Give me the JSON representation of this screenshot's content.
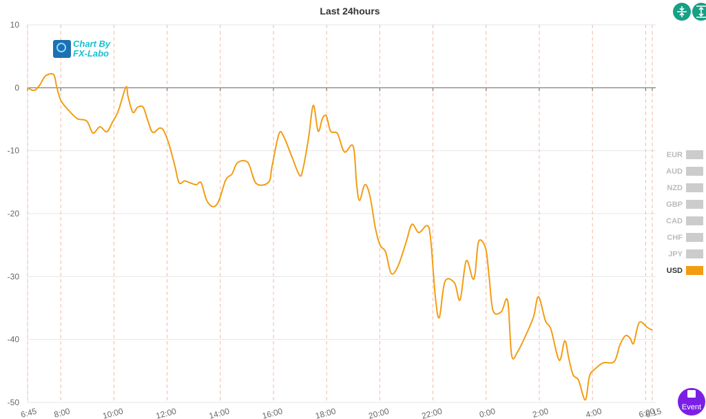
{
  "chart_data": {
    "type": "line",
    "title": "Last 24hours",
    "x": [
      6.75,
      6.93,
      7.06,
      7.22,
      7.43,
      7.73,
      7.84,
      8.0,
      8.3,
      8.62,
      8.98,
      9.21,
      9.47,
      9.73,
      9.94,
      10.17,
      10.45,
      10.53,
      10.71,
      10.89,
      11.1,
      11.28,
      11.46,
      11.72,
      11.88,
      12.08,
      12.29,
      12.45,
      12.66,
      12.86,
      13.1,
      13.28,
      13.49,
      13.74,
      13.95,
      14.21,
      14.44,
      14.65,
      15.04,
      15.35,
      15.82,
      15.95,
      16.21,
      16.39,
      16.67,
      16.98,
      17.11,
      17.32,
      17.5,
      17.68,
      17.84,
      17.99,
      18.15,
      18.41,
      18.67,
      19.0,
      19.13,
      19.24,
      19.44,
      19.63,
      19.83,
      20.01,
      20.22,
      20.43,
      20.69,
      21.0,
      21.21,
      21.47,
      21.78,
      21.91,
      22.09,
      22.24,
      22.45,
      22.81,
      23.02,
      23.25,
      23.49,
      23.59,
      23.72,
      23.98,
      24.11,
      24.26,
      24.57,
      24.81,
      24.96,
      25.19,
      25.56,
      25.79,
      25.97,
      26.23,
      26.44,
      26.75,
      26.96,
      27.11,
      27.27,
      27.48,
      27.73,
      27.89,
      28.12,
      28.41,
      28.82,
      29.03,
      29.24,
      29.42,
      29.55,
      29.76,
      30.07,
      30.25
    ],
    "series": [
      {
        "name": "USD",
        "color": "#f39c12",
        "values": [
          0,
          -0.4,
          -0.3,
          0.5,
          1.9,
          2.1,
          0.3,
          -2.0,
          -3.6,
          -4.9,
          -5.3,
          -7.2,
          -6.2,
          -7.0,
          -5.5,
          -3.6,
          0.1,
          -1.4,
          -3.9,
          -3.1,
          -3.1,
          -5.3,
          -7.1,
          -6.4,
          -6.9,
          -9.1,
          -12.4,
          -15.1,
          -14.8,
          -15.1,
          -15.4,
          -15.1,
          -17.9,
          -18.9,
          -17.9,
          -14.6,
          -13.7,
          -11.9,
          -11.9,
          -15.2,
          -15.0,
          -12.4,
          -7.3,
          -7.8,
          -10.7,
          -13.9,
          -12.9,
          -8.0,
          -2.8,
          -6.9,
          -4.9,
          -4.5,
          -6.9,
          -7.3,
          -10.2,
          -9.3,
          -15.4,
          -17.9,
          -15.4,
          -17.2,
          -22.2,
          -25.0,
          -26.1,
          -29.5,
          -28.3,
          -24.4,
          -21.7,
          -23.0,
          -21.9,
          -23.9,
          -33.2,
          -36.5,
          -30.8,
          -31.0,
          -33.7,
          -27.5,
          -30.3,
          -29.4,
          -24.4,
          -25.5,
          -29.9,
          -35.4,
          -35.6,
          -33.8,
          -42.5,
          -41.9,
          -38.7,
          -36.3,
          -33.2,
          -37.0,
          -38.4,
          -43.3,
          -40.2,
          -43.0,
          -45.6,
          -46.5,
          -49.6,
          -45.8,
          -44.6,
          -43.7,
          -43.5,
          -40.9,
          -39.4,
          -39.8,
          -40.6,
          -37.3,
          -38.1,
          -38.5
        ]
      }
    ],
    "inactive_series": [
      {
        "name": "EUR",
        "color": "#cccccc"
      },
      {
        "name": "AUD",
        "color": "#cccccc"
      },
      {
        "name": "NZD",
        "color": "#cccccc"
      },
      {
        "name": "GBP",
        "color": "#cccccc"
      },
      {
        "name": "CAD",
        "color": "#cccccc"
      },
      {
        "name": "CHF",
        "color": "#cccccc"
      },
      {
        "name": "JPY",
        "color": "#cccccc"
      }
    ],
    "xlim": [
      6.75,
      30.25
    ],
    "xticks": [
      {
        "value": 6.75,
        "label": "6:45"
      },
      {
        "value": 8,
        "label": "8:00"
      },
      {
        "value": 10,
        "label": "10:00"
      },
      {
        "value": 12,
        "label": "12:00"
      },
      {
        "value": 14,
        "label": "14:00"
      },
      {
        "value": 16,
        "label": "16:00"
      },
      {
        "value": 18,
        "label": "18:00"
      },
      {
        "value": 20,
        "label": "20:00"
      },
      {
        "value": 22,
        "label": "22:00"
      },
      {
        "value": 24,
        "label": "0:00"
      },
      {
        "value": 26,
        "label": "2:00"
      },
      {
        "value": 28,
        "label": "4:00"
      },
      {
        "value": 30,
        "label": "6:00"
      },
      {
        "value": 30.25,
        "label": "6:15"
      }
    ],
    "ylim": [
      -50,
      10
    ],
    "yticks": [
      10,
      0,
      -10,
      -20,
      -30,
      -40,
      -50
    ],
    "grid": true
  },
  "logo": [
    "Chart By",
    "FX-Labo"
  ],
  "event_button": "Event"
}
